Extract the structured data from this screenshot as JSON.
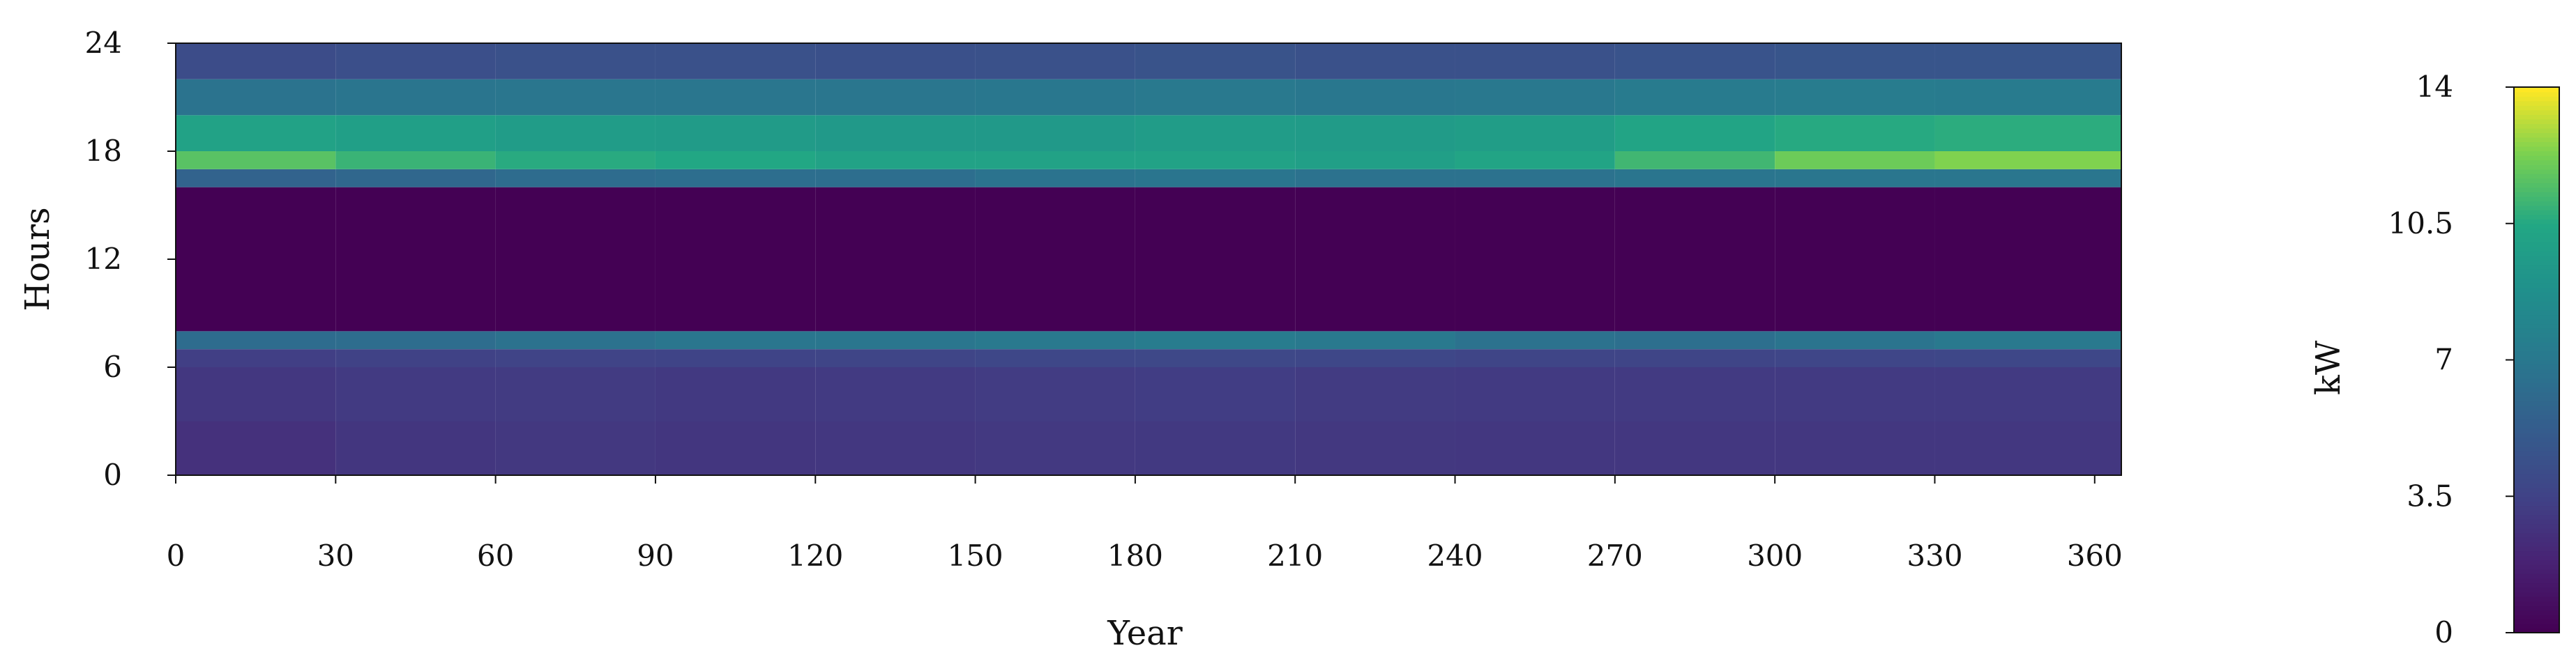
{
  "chart_data": {
    "type": "heatmap",
    "title": "",
    "xlabel": "Year",
    "ylabel": "Hours",
    "xlim": [
      0,
      365
    ],
    "ylim": [
      0,
      24
    ],
    "x_ticks": [
      0,
      30,
      60,
      90,
      120,
      150,
      180,
      210,
      240,
      270,
      300,
      330,
      360
    ],
    "y_ticks": [
      0,
      6,
      12,
      18,
      24
    ],
    "x_tick_labels": [
      "0",
      "30",
      "60",
      "90",
      "120",
      "150",
      "180",
      "210",
      "240",
      "270",
      "300",
      "330",
      "360"
    ],
    "y_tick_labels": [
      "0",
      "6",
      "12",
      "18",
      "24"
    ],
    "colorbar": {
      "label": "kW",
      "range": [
        0,
        14
      ],
      "ticks": [
        0,
        3.5,
        7,
        10.5,
        14
      ],
      "tick_labels": [
        "0",
        "3.5",
        "7",
        "10.5",
        "14"
      ],
      "colormap": "viridis"
    },
    "grid": false,
    "legend": "none",
    "series": [
      {
        "x_days": [
          0,
          30,
          60,
          90,
          120,
          150,
          180,
          210,
          240,
          270,
          300,
          330,
          365
        ],
        "hour_bins": [
          0,
          3,
          6,
          7,
          8,
          12,
          15,
          16,
          17,
          18,
          20,
          22,
          24
        ],
        "day_profiles": [
          {
            "day": 0,
            "values": [
              2.5,
              2.8,
              3.2,
              6.0,
              0.0,
              0.0,
              0.0,
              5.5,
              11.8,
              10.0,
              6.5,
              4.0,
              3.0
            ]
          },
          {
            "day": 30,
            "values": [
              2.6,
              2.9,
              3.4,
              6.4,
              0.0,
              0.0,
              0.0,
              5.8,
              11.5,
              10.2,
              6.8,
              4.2,
              3.1
            ]
          },
          {
            "day": 60,
            "values": [
              3.0,
              3.2,
              3.5,
              6.2,
              0.0,
              0.0,
              0.0,
              6.0,
              10.5,
              9.6,
              6.8,
              4.4,
              3.2
            ]
          },
          {
            "day": 90,
            "values": [
              2.8,
              3.0,
              3.6,
              7.0,
              0.0,
              0.0,
              0.0,
              6.5,
              10.8,
              9.8,
              7.0,
              4.5,
              3.3
            ]
          },
          {
            "day": 120,
            "values": [
              2.8,
              3.0,
              3.6,
              6.8,
              0.0,
              0.0,
              0.0,
              6.2,
              10.2,
              9.5,
              6.8,
              4.4,
              3.2
            ]
          },
          {
            "day": 150,
            "values": [
              2.9,
              3.1,
              3.7,
              7.0,
              0.0,
              0.0,
              0.0,
              6.5,
              10.0,
              9.4,
              6.9,
              4.4,
              3.2
            ]
          },
          {
            "day": 180,
            "values": [
              3.0,
              3.2,
              3.8,
              7.2,
              0.0,
              0.0,
              0.0,
              6.8,
              10.2,
              9.6,
              7.0,
              4.5,
              3.3
            ]
          },
          {
            "day": 210,
            "values": [
              3.0,
              3.2,
              3.9,
              7.4,
              0.0,
              0.0,
              0.0,
              6.8,
              10.0,
              9.8,
              7.1,
              4.6,
              3.3
            ]
          },
          {
            "day": 240,
            "values": [
              2.8,
              3.0,
              3.6,
              6.8,
              0.0,
              0.0,
              0.0,
              6.4,
              9.8,
              9.4,
              6.8,
              4.3,
              3.1
            ]
          },
          {
            "day": 270,
            "values": [
              2.9,
              3.1,
              3.7,
              6.4,
              0.0,
              0.0,
              0.0,
              6.8,
              10.8,
              10.2,
              7.2,
              4.6,
              3.3
            ]
          },
          {
            "day": 300,
            "values": [
              2.8,
              3.0,
              3.6,
              6.4,
              0.0,
              0.0,
              0.0,
              6.8,
              11.5,
              10.4,
              7.2,
              4.6,
              3.3
            ]
          },
          {
            "day": 330,
            "values": [
              2.9,
              3.1,
              3.8,
              7.1,
              0.0,
              0.0,
              0.0,
              7.0,
              12.6,
              10.8,
              7.4,
              4.8,
              3.4
            ]
          },
          {
            "day": 365,
            "values": [
              2.8,
              3.0,
              3.7,
              7.0,
              0.0,
              0.0,
              0.0,
              6.8,
              12.2,
              10.6,
              7.1,
              4.6,
              3.2
            ]
          }
        ]
      }
    ]
  }
}
